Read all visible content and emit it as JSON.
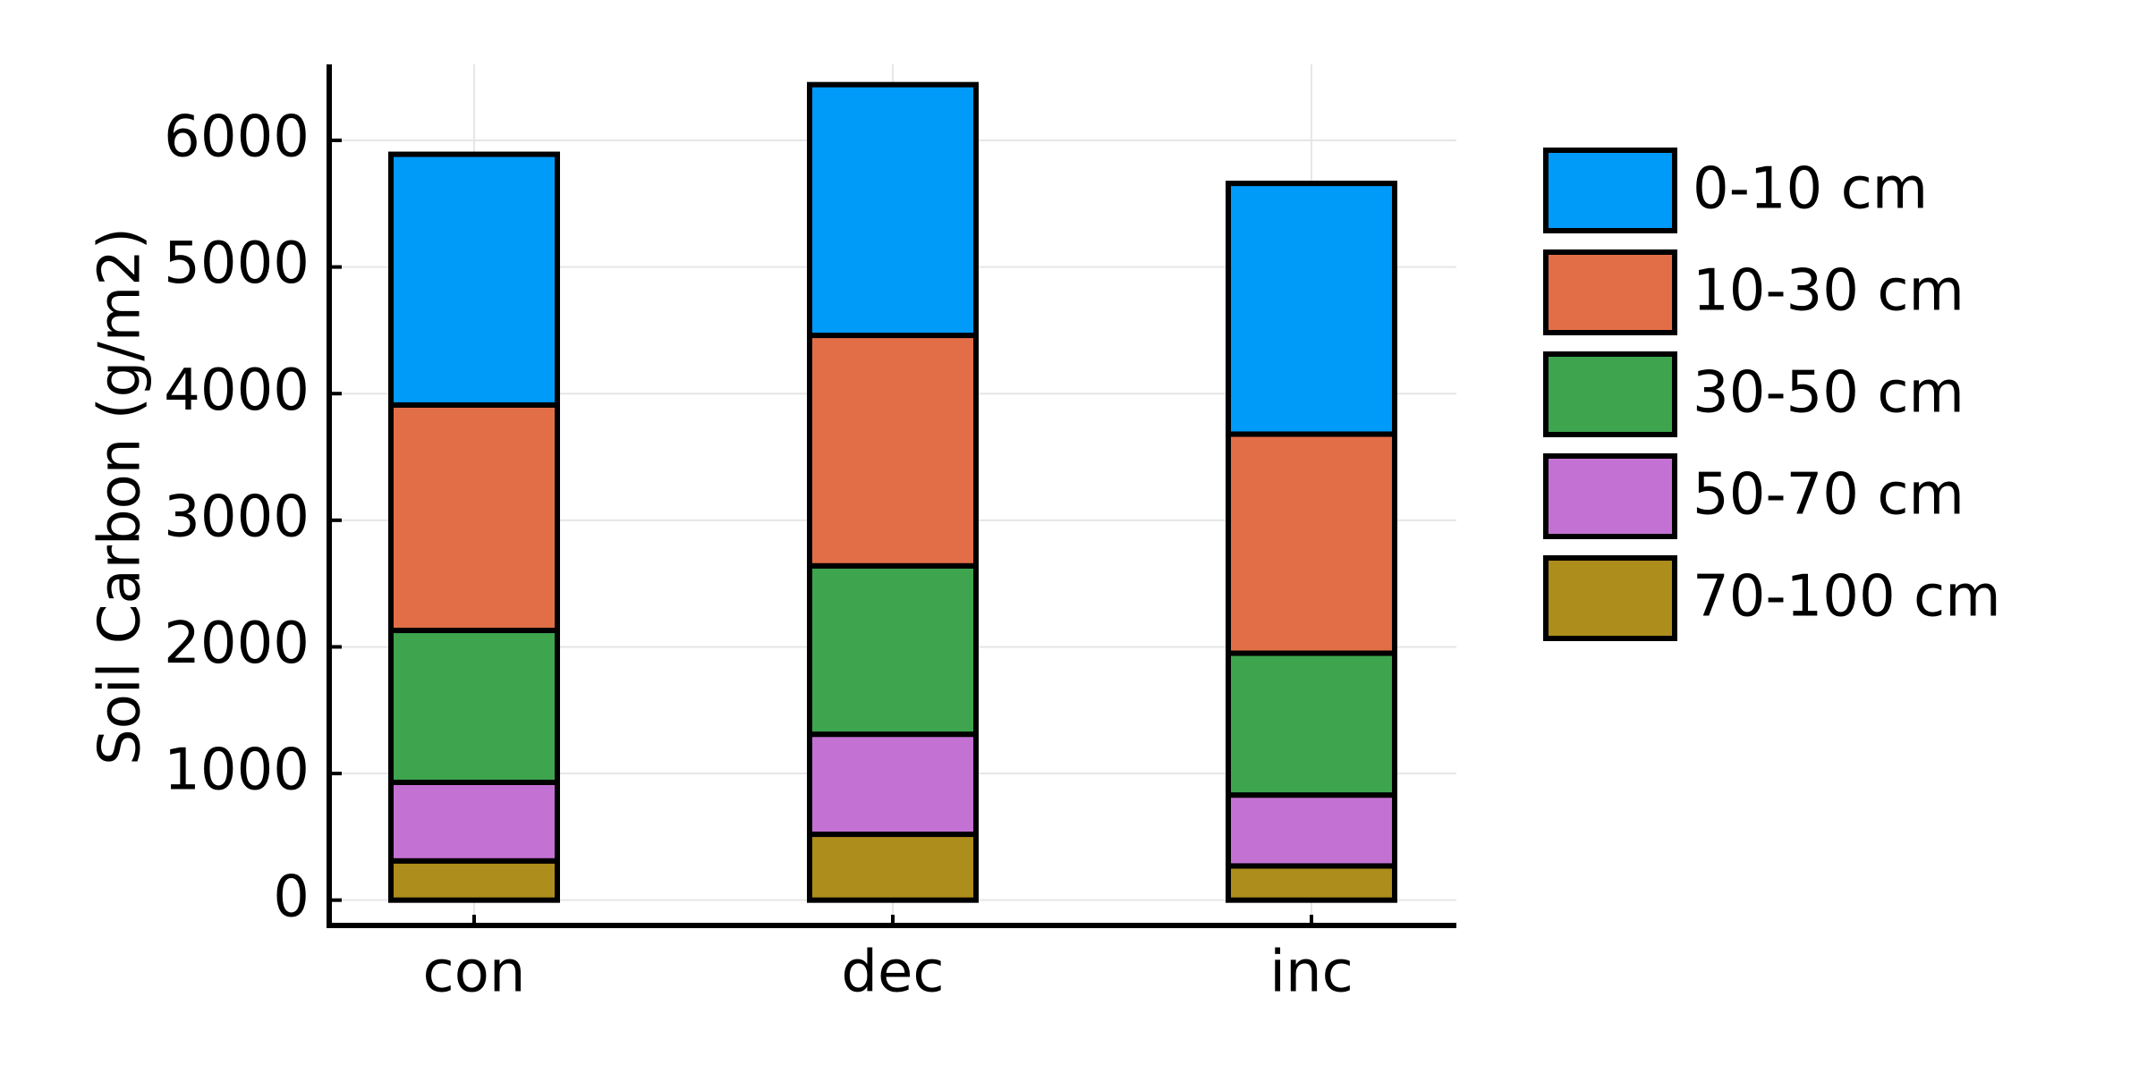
{
  "chart_data": {
    "type": "bar",
    "stacked": true,
    "categories": [
      "con",
      "dec",
      "inc"
    ],
    "ylabel": "Soil Carbon (g/m2)",
    "xlabel": "",
    "ylim": [
      -200,
      6600
    ],
    "yticks": [
      0,
      1000,
      2000,
      3000,
      4000,
      5000,
      6000
    ],
    "grid": true,
    "legend_position": "right",
    "series": [
      {
        "name": "70-100 cm",
        "color": "#ad8d1b",
        "values": [
          310,
          520,
          270
        ]
      },
      {
        "name": "50-70 cm",
        "color": "#c372d3",
        "values": [
          620,
          790,
          560
        ]
      },
      {
        "name": "30-50 cm",
        "color": "#3ea44e",
        "values": [
          1200,
          1330,
          1120
        ]
      },
      {
        "name": "10-30 cm",
        "color": "#e26e47",
        "values": [
          1780,
          1820,
          1730
        ]
      },
      {
        "name": "0-10 cm",
        "color": "#009af9",
        "values": [
          1980,
          1980,
          1980
        ]
      }
    ],
    "legend_order": [
      "0-10 cm",
      "10-30 cm",
      "30-50 cm",
      "50-70 cm",
      "70-100 cm"
    ]
  }
}
